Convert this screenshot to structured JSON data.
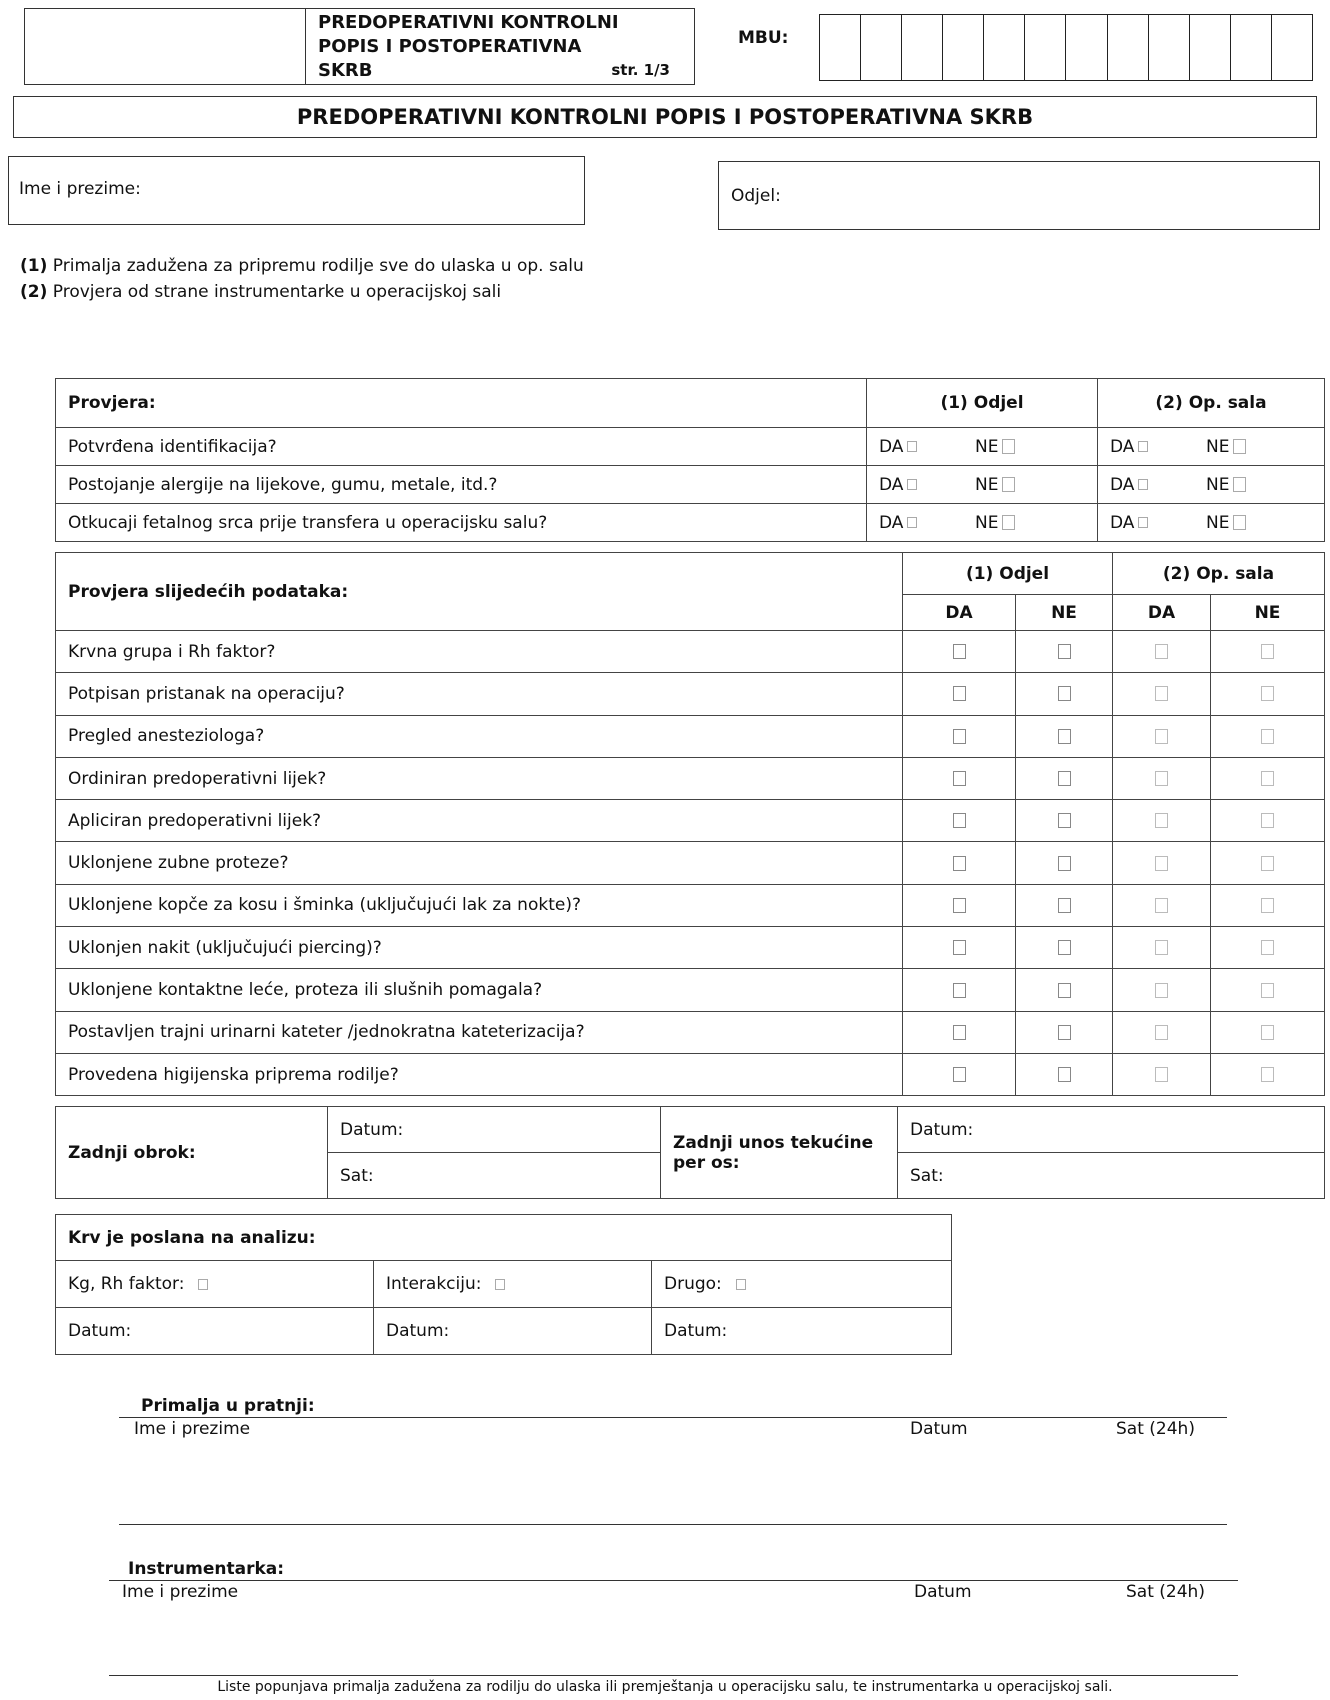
{
  "header": {
    "small_title_lines": [
      "PREDOPERATIVNI KONTROLNI",
      "POPIS I POSTOPERATIVNA",
      "SKRB"
    ],
    "page": "str. 1/3",
    "mbu_label": "MBU:",
    "mbu_cells": 12
  },
  "main_title": "PREDOPERATIVNI KONTROLNI POPIS I POSTOPERATIVNA SKRB",
  "patient": {
    "name_label": "Ime i prezime:",
    "dept_label": "Odjel:"
  },
  "notes": [
    {
      "num": "(1)",
      "text": " Primalja zadužena za pripremu rodilje sve do ulaska u op. salu"
    },
    {
      "num": "(2)",
      "text": " Provjera od strane instrumentarke u operacijskoj sali"
    }
  ],
  "table1": {
    "header": "Provjera:",
    "col1": "(1) Odjel",
    "col2": "(2) Op. sala",
    "da": "DA",
    "ne": "NE",
    "rows": [
      "Potvrđena identifikacija?",
      "Postojanje alergije na lijekove, gumu, metale, itd.?",
      "Otkucaji fetalnog srca prije transfera u operacijsku salu?"
    ]
  },
  "table2": {
    "header": "Provjera slijedećih podataka:",
    "col1": "(1) Odjel",
    "col2": "(2) Op. sala",
    "da": "DA",
    "ne": "NE",
    "rows": [
      "Krvna grupa i Rh faktor?",
      "Potpisan pristanak na operaciju?",
      "Pregled anesteziologa?",
      "Ordiniran predoperativni lijek?",
      "Apliciran predoperativni lijek?",
      "Uklonjene zubne proteze?",
      "Uklonjene kopče za kosu i šminka (uključujući lak za nokte)?",
      "Uklonjen nakit (uključujući piercing)?",
      "Uklonjene kontaktne leće, proteza ili slušnih pomagala?",
      "Postavljen trajni urinarni kateter /jednokratna kateterizacija?",
      "Provedena higijenska priprema rodilje?"
    ]
  },
  "table3": {
    "meal": "Zadnji obrok:",
    "fluid": "Zadnji unos tekućine per os:",
    "date": "Datum:",
    "time": "Sat:"
  },
  "table4": {
    "header": "Krv je poslana  na analizu:",
    "items": [
      "Kg, Rh faktor:",
      "Interakciju:",
      "Drugo:"
    ],
    "date": "Datum:"
  },
  "midwife": {
    "label": "Primalja u pratnji:",
    "name": "Ime i prezime",
    "date": "Datum",
    "time": "Sat (24h)"
  },
  "nurse": {
    "label": "Instrumentarka:",
    "name": "Ime i prezime",
    "date": "Datum",
    "time": "Sat (24h)"
  },
  "footer": "Liste popunjava primalja zadužena za rodilju do ulaska ili premještanja u  operacijsku salu, te instrumentarka u operacijskoj sali."
}
